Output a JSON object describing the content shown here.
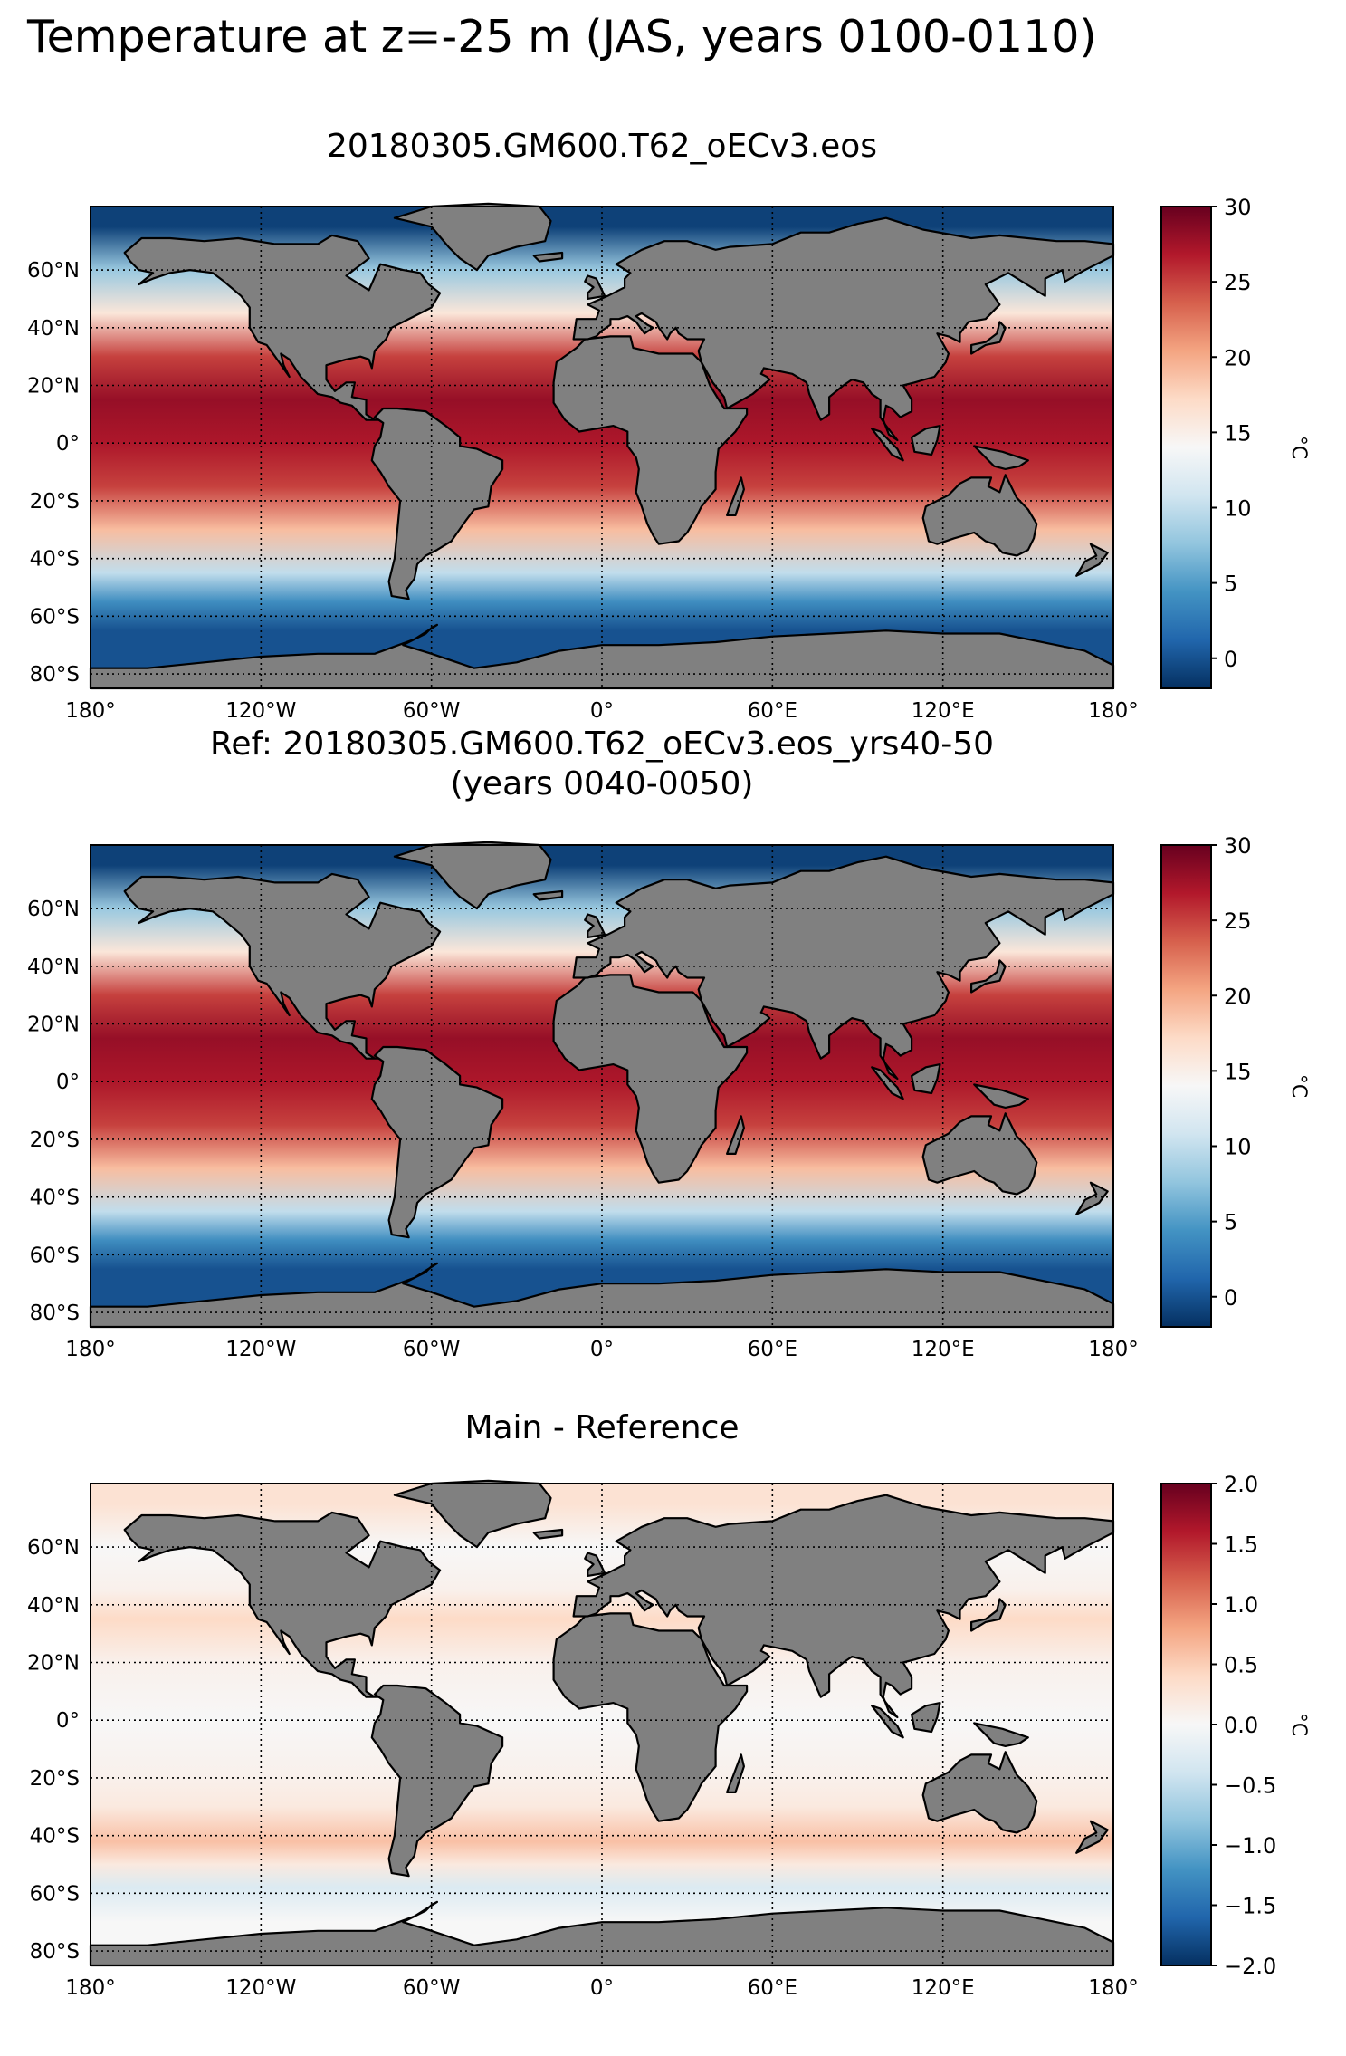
{
  "figure_title": "Temperature at z=-25 m (JAS, years 0100-0110)",
  "colors": {
    "land": "#808080",
    "ocean_diverging_scale": [
      "#053061",
      "#2166ac",
      "#4393c3",
      "#92c5de",
      "#d1e5f0",
      "#f7f7f7",
      "#fddbc7",
      "#f4a582",
      "#d6604d",
      "#b2182b",
      "#67001f"
    ]
  },
  "map_axes": {
    "lon_ticks": [
      "180°",
      "120°W",
      "60°W",
      "0°",
      "60°E",
      "120°E",
      "180°"
    ],
    "lat_ticks": [
      "60°N",
      "40°N",
      "20°N",
      "0°",
      "20°S",
      "40°S",
      "60°S",
      "80°S"
    ]
  },
  "panels": [
    {
      "title_lines": [
        "20180305.GM600.T62_oECv3.eos"
      ],
      "field": "main",
      "colorbar": {
        "ticks": [
          "30",
          "25",
          "20",
          "15",
          "10",
          "5",
          "0"
        ],
        "range": [
          -2,
          30
        ],
        "unit": "°C"
      }
    },
    {
      "title_lines": [
        "Ref: 20180305.GM600.T62_oECv3.eos_yrs40-50",
        "(years 0040-0050)"
      ],
      "field": "reference",
      "colorbar": {
        "ticks": [
          "30",
          "25",
          "20",
          "15",
          "10",
          "5",
          "0"
        ],
        "range": [
          -2,
          30
        ],
        "unit": "°C"
      }
    },
    {
      "title_lines": [
        "Main - Reference"
      ],
      "field": "difference",
      "colorbar": {
        "ticks": [
          "2.0",
          "1.5",
          "1.0",
          "0.5",
          "0.0",
          "−0.5",
          "−1.0",
          "−1.5",
          "−2.0"
        ],
        "range": [
          -2,
          2
        ],
        "unit": "°C"
      }
    }
  ],
  "chart_data": {
    "type": "heatmap",
    "title": "Temperature at z=-25 m (JAS, years 0100-0110)",
    "x_range_degrees": [
      -180,
      180
    ],
    "y_range_degrees": [
      -85,
      82
    ],
    "maps": [
      {
        "name": "20180305.GM600.T62_oECv3.eos",
        "zlim": [
          -2,
          30
        ],
        "zonal_mean_temperature_C": [
          {
            "lat": 75,
            "value": -1
          },
          {
            "lat": 60,
            "value": 8
          },
          {
            "lat": 45,
            "value": 16
          },
          {
            "lat": 30,
            "value": 25
          },
          {
            "lat": 15,
            "value": 28
          },
          {
            "lat": 0,
            "value": 27
          },
          {
            "lat": -15,
            "value": 25
          },
          {
            "lat": -30,
            "value": 19
          },
          {
            "lat": -45,
            "value": 10
          },
          {
            "lat": -55,
            "value": 4
          },
          {
            "lat": -65,
            "value": 0
          }
        ]
      },
      {
        "name": "Ref: 20180305.GM600.T62_oECv3.eos_yrs40-50 (years 0040-0050)",
        "zlim": [
          -2,
          30
        ],
        "zonal_mean_temperature_C": [
          {
            "lat": 75,
            "value": -1
          },
          {
            "lat": 60,
            "value": 8
          },
          {
            "lat": 45,
            "value": 16
          },
          {
            "lat": 30,
            "value": 25
          },
          {
            "lat": 15,
            "value": 28
          },
          {
            "lat": 0,
            "value": 27
          },
          {
            "lat": -15,
            "value": 25
          },
          {
            "lat": -30,
            "value": 19
          },
          {
            "lat": -45,
            "value": 10
          },
          {
            "lat": -55,
            "value": 4
          },
          {
            "lat": -65,
            "value": 0
          }
        ]
      },
      {
        "name": "Main - Reference",
        "zlim": [
          -2,
          2
        ],
        "zonal_mean_temperature_C": [
          {
            "lat": 75,
            "value": 0.3
          },
          {
            "lat": 60,
            "value": 0
          },
          {
            "lat": 45,
            "value": 0.1
          },
          {
            "lat": 35,
            "value": 0.4
          },
          {
            "lat": 20,
            "value": 0.1
          },
          {
            "lat": 0,
            "value": 0
          },
          {
            "lat": -20,
            "value": 0.1
          },
          {
            "lat": -30,
            "value": 0.2
          },
          {
            "lat": -42,
            "value": 0.6
          },
          {
            "lat": -50,
            "value": 0.2
          },
          {
            "lat": -58,
            "value": -0.3
          },
          {
            "lat": -70,
            "value": 0
          }
        ]
      }
    ]
  }
}
